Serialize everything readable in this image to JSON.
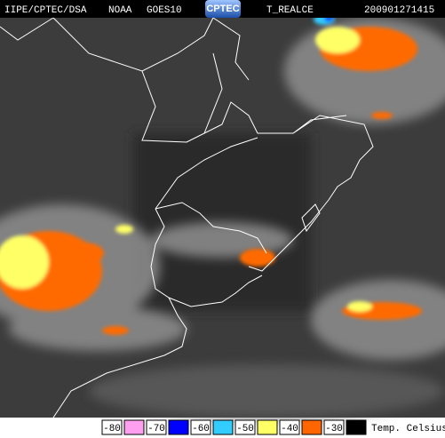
{
  "header": {
    "agency": "IIPE/CPTEC/DSA",
    "satellite": "NOAA",
    "sensor": "GOES10",
    "logo": "CPTEC",
    "product": "T_REALCE",
    "timestamp": "200901271415"
  },
  "legend": {
    "items": [
      {
        "label": "-80",
        "color": "#ff9ff0"
      },
      {
        "label": "-70",
        "color": "#0000ff"
      },
      {
        "label": "-60",
        "color": "#33ccff"
      },
      {
        "label": "-50",
        "color": "#ffff66"
      },
      {
        "label": "-40",
        "color": "#ff6600"
      },
      {
        "label": "-30",
        "color": "#000000"
      }
    ],
    "unit": "Temp. Celsius"
  }
}
